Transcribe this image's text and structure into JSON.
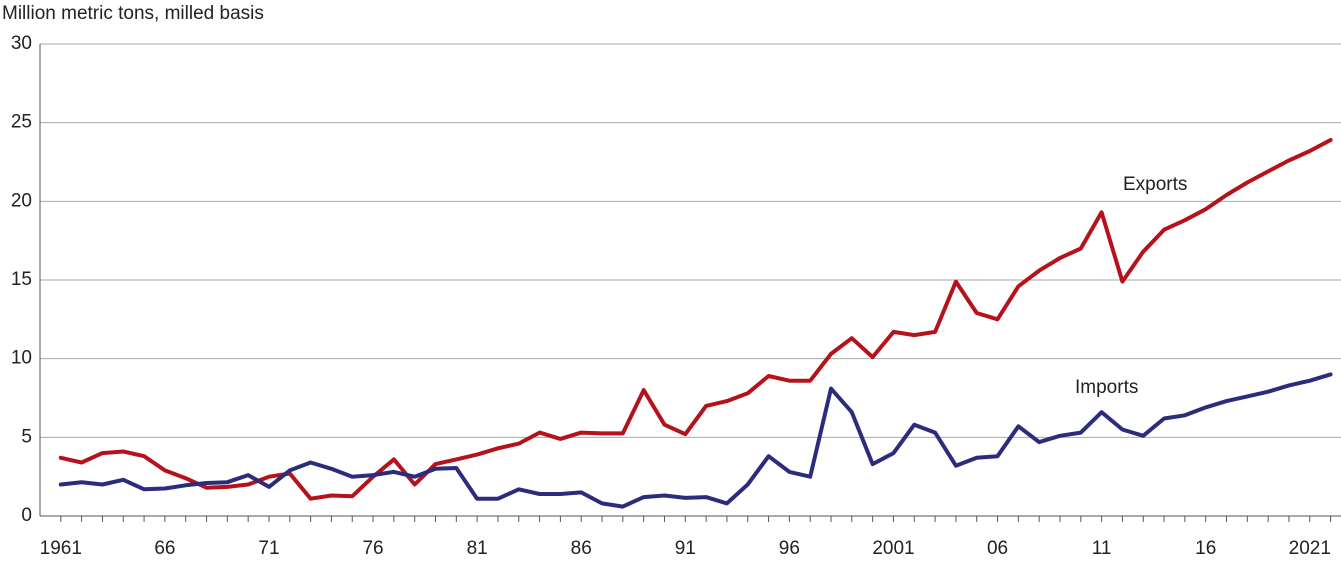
{
  "chart_data": {
    "type": "line",
    "y_axis_label": "Million metric tons, milled basis",
    "x": [
      1961,
      1962,
      1963,
      1964,
      1965,
      1966,
      1967,
      1968,
      1969,
      1970,
      1971,
      1972,
      1973,
      1974,
      1975,
      1976,
      1977,
      1978,
      1979,
      1980,
      1981,
      1982,
      1983,
      1984,
      1985,
      1986,
      1987,
      1988,
      1989,
      1990,
      1991,
      1992,
      1993,
      1994,
      1995,
      1996,
      1997,
      1998,
      1999,
      2000,
      2001,
      2002,
      2003,
      2004,
      2005,
      2006,
      2007,
      2008,
      2009,
      2010,
      2011,
      2012,
      2013,
      2014,
      2015,
      2016,
      2017,
      2018,
      2019,
      2020,
      2021,
      2022
    ],
    "series": [
      {
        "name": "Exports",
        "color": "#b5121b",
        "values": [
          3.7,
          3.4,
          4.0,
          4.1,
          3.8,
          2.9,
          2.4,
          1.8,
          1.85,
          2.0,
          2.5,
          2.7,
          1.1,
          1.3,
          1.25,
          2.5,
          3.6,
          2.0,
          3.3,
          3.6,
          3.9,
          4.3,
          4.6,
          5.3,
          4.9,
          5.3,
          5.25,
          5.25,
          8.0,
          5.8,
          5.2,
          7.0,
          7.3,
          7.8,
          8.9,
          8.6,
          8.6,
          10.3,
          11.3,
          10.1,
          11.7,
          11.5,
          11.7,
          14.9,
          12.9,
          12.5,
          14.6,
          15.6,
          16.4,
          17.0,
          19.3,
          14.9,
          16.8,
          18.2,
          18.8,
          19.5,
          20.4,
          21.2,
          21.9,
          22.6,
          23.2,
          23.9
        ]
      },
      {
        "name": "Imports",
        "color": "#2b2d7c",
        "values": [
          2.0,
          2.15,
          2.0,
          2.3,
          1.7,
          1.75,
          1.95,
          2.1,
          2.15,
          2.6,
          1.85,
          2.9,
          3.4,
          3.0,
          2.5,
          2.6,
          2.8,
          2.5,
          3.0,
          3.05,
          1.1,
          1.1,
          1.7,
          1.4,
          1.4,
          1.5,
          0.8,
          0.6,
          1.2,
          1.3,
          1.15,
          1.2,
          0.8,
          2.0,
          3.8,
          2.8,
          2.5,
          8.1,
          6.6,
          3.3,
          4.0,
          5.8,
          5.3,
          3.2,
          3.7,
          3.8,
          5.7,
          4.7,
          5.1,
          5.3,
          6.6,
          5.5,
          5.1,
          6.2,
          6.4,
          6.9,
          7.3,
          7.6,
          7.9,
          8.3,
          8.6,
          9.0
        ]
      }
    ],
    "xlim": [
      1960,
      2022.5
    ],
    "xticks": [
      1961,
      {
        "value": 1966,
        "label": "66"
      },
      {
        "value": 1971,
        "label": "71"
      },
      {
        "value": 1976,
        "label": "76"
      },
      {
        "value": 1981,
        "label": "81"
      },
      {
        "value": 1986,
        "label": "86"
      },
      {
        "value": 1991,
        "label": "91"
      },
      {
        "value": 1996,
        "label": "96"
      },
      2001,
      {
        "value": 2006,
        "label": "06"
      },
      {
        "value": 2011,
        "label": "11"
      },
      {
        "value": 2016,
        "label": "16"
      },
      2021
    ],
    "ylim": [
      0,
      30
    ],
    "yticks": [
      0,
      5,
      10,
      15,
      20,
      25,
      30
    ],
    "grid": true
  }
}
